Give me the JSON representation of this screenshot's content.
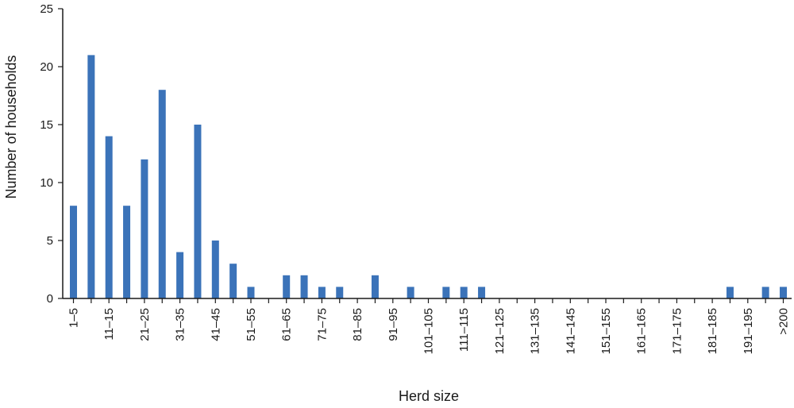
{
  "chart_data": {
    "type": "bar",
    "title": "",
    "xlabel": "Herd size",
    "ylabel": "Number of households",
    "ylim": [
      0,
      25
    ],
    "yticks": [
      0,
      5,
      10,
      15,
      20,
      25
    ],
    "grid": false,
    "color": "#3b73b9",
    "categories": [
      "1–5",
      "6–10",
      "11–15",
      "16–20",
      "21–25",
      "26–30",
      "31–35",
      "36–40",
      "41–45",
      "46–50",
      "51–55",
      "56–60",
      "61–65",
      "66–70",
      "71–75",
      "76–80",
      "81–85",
      "86–90",
      "91–95",
      "96–100",
      "101–105",
      "106–110",
      "111–115",
      "116–120",
      "121–125",
      "126–130",
      "131–135",
      "136–140",
      "141–145",
      "146–150",
      "151–155",
      "156–160",
      "161–165",
      "166–170",
      "171–175",
      "176–180",
      "181–185",
      "186–190",
      "191–195",
      "196–200",
      ">200"
    ],
    "visible_tick_labels": [
      "1–5",
      "11–15",
      "21–25",
      "31–35",
      "41–45",
      "51–55",
      "61–65",
      "71–75",
      "81–85",
      "91–95",
      "101–105",
      "111–115",
      "121–125",
      "131–135",
      "141–145",
      "151–155",
      "161–165",
      "171–175",
      "181–185",
      "191–195",
      ">200"
    ],
    "values": [
      8,
      21,
      14,
      8,
      12,
      18,
      4,
      15,
      5,
      3,
      1,
      0,
      2,
      2,
      1,
      1,
      0,
      2,
      0,
      1,
      0,
      1,
      1,
      1,
      0,
      0,
      0,
      0,
      0,
      0,
      0,
      0,
      0,
      0,
      0,
      0,
      0,
      1,
      0,
      1,
      1
    ]
  }
}
